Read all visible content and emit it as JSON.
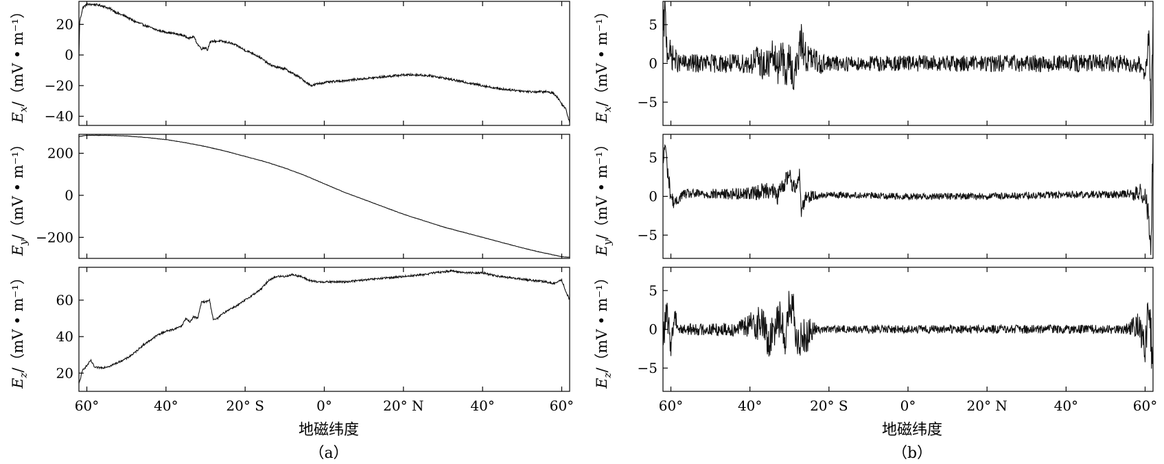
{
  "figure": {
    "caption_a": "（a）",
    "caption_b": "（b）",
    "xlabel_a": "地磁纬度",
    "xlabel_b": "地磁纬度"
  },
  "chart_data": [
    {
      "id": "a-ex",
      "type": "line",
      "ylabel_main": "E",
      "ylabel_sub": "x",
      "ylabel_unit": "/（mV • m⁻¹）",
      "xlim": [
        -62,
        62
      ],
      "ylim": [
        -46,
        35
      ],
      "xticks": [
        -60,
        -40,
        -20,
        0,
        20,
        40,
        60
      ],
      "xtick_labels": [
        "60°",
        "40°",
        "20° S",
        "0°",
        "20° N",
        "40°",
        "60°"
      ],
      "yticks": [
        20,
        0,
        -20,
        -40
      ],
      "ytick_labels": [
        "20",
        "0",
        "−20",
        "−40"
      ],
      "series": [
        {
          "x": [
            -62,
            -61.8,
            -61,
            -60,
            -58,
            -56,
            -54,
            -52,
            -50,
            -48,
            -46,
            -44,
            -42,
            -40,
            -38,
            -36,
            -35,
            -34,
            -33,
            -32,
            -31,
            -30,
            -29.5,
            -29,
            -28,
            -26,
            -24,
            -22,
            -20,
            -18,
            -16,
            -14,
            -12,
            -10,
            -8,
            -6,
            -4,
            -3,
            -2,
            0,
            4,
            8,
            12,
            16,
            20,
            24,
            28,
            32,
            36,
            40,
            44,
            48,
            52,
            54,
            56,
            58,
            59,
            60,
            61,
            62
          ],
          "y": [
            -1,
            22,
            31,
            33,
            33,
            32,
            30,
            27,
            25,
            22,
            20,
            18,
            16,
            15,
            14,
            13,
            12,
            11,
            12,
            7,
            4,
            5,
            3,
            8,
            9,
            9,
            8,
            6,
            3,
            1,
            -2,
            -6,
            -8,
            -9,
            -12,
            -15,
            -19,
            -20,
            -19,
            -18,
            -17,
            -16,
            -15,
            -14,
            -13,
            -13,
            -14,
            -16,
            -18,
            -20,
            -22,
            -23,
            -24,
            -24,
            -24,
            -25,
            -28,
            -32,
            -35,
            -44
          ]
        }
      ],
      "noise": 1.2
    },
    {
      "id": "a-ey",
      "type": "line",
      "ylabel_main": "E",
      "ylabel_sub": "y",
      "ylabel_unit": "/（mV • m⁻¹）",
      "xlim": [
        -62,
        62
      ],
      "ylim": [
        -300,
        290
      ],
      "xticks": [
        -60,
        -40,
        -20,
        0,
        20,
        40,
        60
      ],
      "xtick_labels": [
        "60°",
        "40°",
        "20° S",
        "0°",
        "20° N",
        "40°",
        "60°"
      ],
      "yticks": [
        200,
        0,
        -200
      ],
      "ytick_labels": [
        "200",
        "0",
        "−200"
      ],
      "series": [
        {
          "x": [
            -62,
            -60,
            -55,
            -50,
            -45,
            -40,
            -35,
            -30,
            -25,
            -20,
            -15,
            -10,
            -5,
            0,
            5,
            10,
            15,
            20,
            25,
            30,
            35,
            40,
            45,
            50,
            55,
            60,
            62
          ],
          "y": [
            280,
            285,
            285,
            282,
            275,
            265,
            250,
            232,
            210,
            185,
            160,
            130,
            95,
            55,
            15,
            -20,
            -55,
            -90,
            -120,
            -150,
            -175,
            -200,
            -225,
            -250,
            -272,
            -292,
            -295
          ]
        }
      ],
      "noise": 1.5
    },
    {
      "id": "a-ez",
      "type": "line",
      "ylabel_main": "E",
      "ylabel_sub": "z",
      "ylabel_unit": "/（mV • m⁻¹）",
      "xlim": [
        -62,
        62
      ],
      "ylim": [
        10,
        78
      ],
      "xticks": [
        -60,
        -40,
        -20,
        0,
        20,
        40,
        60
      ],
      "xtick_labels": [
        "60°",
        "40°",
        "20° S",
        "0°",
        "20° N",
        "40°",
        "60°"
      ],
      "yticks": [
        60,
        40,
        20
      ],
      "ytick_labels": [
        "60",
        "40",
        "20"
      ],
      "series": [
        {
          "x": [
            -62,
            -61,
            -60,
            -59,
            -58,
            -56,
            -54,
            -52,
            -50,
            -48,
            -46,
            -44,
            -42,
            -40,
            -38,
            -36,
            -35,
            -34,
            -33,
            -32,
            -31,
            -30,
            -29,
            -28,
            -27,
            -26,
            -24,
            -22,
            -20,
            -18,
            -16,
            -14,
            -12,
            -10,
            -8,
            -6,
            -4,
            -2,
            0,
            5,
            10,
            15,
            20,
            25,
            28,
            32,
            36,
            40,
            44,
            48,
            52,
            56,
            58,
            60,
            61,
            62
          ],
          "y": [
            14,
            22,
            24,
            27,
            23,
            23,
            24,
            26,
            28,
            31,
            35,
            38,
            41,
            43,
            44,
            46,
            50,
            48,
            51,
            50,
            59,
            59,
            60,
            49,
            50,
            52,
            55,
            57,
            60,
            63,
            66,
            71,
            73,
            73,
            74,
            73,
            71,
            70,
            70,
            70,
            71,
            72,
            73,
            74,
            75,
            76,
            75,
            75,
            73,
            72,
            71,
            70,
            69,
            71,
            65,
            60
          ]
        }
      ],
      "noise": 0.9
    },
    {
      "id": "b-ex",
      "type": "line",
      "ylabel_main": "E",
      "ylabel_sub": "x",
      "ylabel_unit": "/（mV • m⁻¹）",
      "xlim": [
        -62,
        62
      ],
      "ylim": [
        -8,
        8
      ],
      "xticks": [
        -60,
        -40,
        -20,
        0,
        20,
        40,
        60
      ],
      "xtick_labels": [
        "60°",
        "40°",
        "20° S",
        "0°",
        "20° N",
        "40°",
        "60°"
      ],
      "yticks": [
        5,
        0,
        -5
      ],
      "ytick_labels": [
        "5",
        "0",
        "−5"
      ],
      "series": [
        {
          "x": [
            -62,
            -61.5,
            -61,
            -60,
            -58,
            -50,
            -40,
            -38,
            -36,
            -34,
            -33,
            -32,
            -31,
            -30,
            -29,
            -28,
            -27,
            -26,
            -25,
            -22,
            -15,
            0,
            20,
            40,
            55,
            58,
            60,
            61,
            61.5,
            62
          ],
          "y": [
            3,
            7,
            2,
            1,
            0,
            0,
            0,
            0.5,
            -0.5,
            1,
            -1,
            2,
            -2,
            1,
            -2,
            0,
            3,
            1,
            0.5,
            0,
            0,
            0,
            0,
            0,
            0,
            0,
            -1,
            3,
            -7,
            5
          ]
        }
      ],
      "noise_profile": [
        [
          -62,
          2.5
        ],
        [
          -58,
          1.2
        ],
        [
          -42,
          1.2
        ],
        [
          -36,
          2.2
        ],
        [
          -26,
          2.2
        ],
        [
          -20,
          1.0
        ],
        [
          60,
          1.2
        ],
        [
          62,
          3
        ]
      ]
    },
    {
      "id": "b-ey",
      "type": "line",
      "ylabel_main": "E",
      "ylabel_sub": "y",
      "ylabel_unit": "/（mV • m⁻¹）",
      "xlim": [
        -62,
        62
      ],
      "ylim": [
        -8,
        8
      ],
      "xticks": [
        -60,
        -40,
        -20,
        0,
        20,
        40,
        60
      ],
      "xtick_labels": [
        "60°",
        "40°",
        "20° S",
        "0°",
        "20° N",
        "40°",
        "60°"
      ],
      "yticks": [
        5,
        0,
        -5
      ],
      "ytick_labels": [
        "5",
        "0",
        "−5"
      ],
      "series": [
        {
          "x": [
            -62,
            -61.5,
            -61,
            -60.5,
            -60,
            -59,
            -57,
            -45,
            -38,
            -35,
            -33,
            -31,
            -30,
            -29,
            -28,
            -27.5,
            -27,
            -26,
            -20,
            0,
            20,
            40,
            58,
            60,
            61,
            61.5,
            62
          ],
          "y": [
            4,
            7,
            4,
            2,
            0,
            -1,
            0.3,
            0.3,
            0.5,
            1,
            0,
            2,
            3,
            1,
            2,
            3,
            -2,
            0,
            0.2,
            0,
            0,
            0.2,
            0.3,
            0.5,
            -3,
            -6,
            6
          ]
        }
      ],
      "noise_profile": [
        [
          -62,
          1.5
        ],
        [
          -58,
          0.6
        ],
        [
          -40,
          0.8
        ],
        [
          -35,
          1.2
        ],
        [
          -26,
          1.0
        ],
        [
          -22,
          0.4
        ],
        [
          55,
          0.5
        ],
        [
          60,
          1.5
        ],
        [
          62,
          3
        ]
      ]
    },
    {
      "id": "b-ez",
      "type": "line",
      "ylabel_main": "E",
      "ylabel_sub": "z",
      "ylabel_unit": "/（mV • m⁻¹）",
      "xlim": [
        -62,
        62
      ],
      "ylim": [
        -8,
        8
      ],
      "xticks": [
        -60,
        -40,
        -20,
        0,
        20,
        40,
        60
      ],
      "xtick_labels": [
        "60°",
        "40°",
        "20° S",
        "0°",
        "20° N",
        "40°",
        "60°"
      ],
      "yticks": [
        5,
        0,
        -5
      ],
      "ytick_labels": [
        "5",
        "0",
        "−5"
      ],
      "series": [
        {
          "x": [
            -62,
            -61,
            -60,
            -59,
            -58,
            -57,
            -50,
            -45,
            -40,
            -37,
            -35,
            -33,
            -31,
            -30,
            -29,
            -28,
            -27,
            -26,
            -24,
            -20,
            0,
            20,
            40,
            55,
            58,
            60,
            61,
            62
          ],
          "y": [
            -1,
            2,
            -2,
            2,
            0,
            0,
            0,
            0,
            0.5,
            1,
            -2,
            2,
            -1,
            3,
            2,
            -3,
            0,
            -1,
            0,
            0,
            0,
            0,
            0,
            0,
            0.5,
            -2,
            3,
            -5
          ]
        }
      ],
      "noise_profile": [
        [
          -62,
          2.2
        ],
        [
          -57,
          0.7
        ],
        [
          -42,
          1.0
        ],
        [
          -37,
          2.6
        ],
        [
          -26,
          2.6
        ],
        [
          -23,
          0.5
        ],
        [
          55,
          0.6
        ],
        [
          59,
          2
        ],
        [
          62,
          3.5
        ]
      ]
    }
  ]
}
